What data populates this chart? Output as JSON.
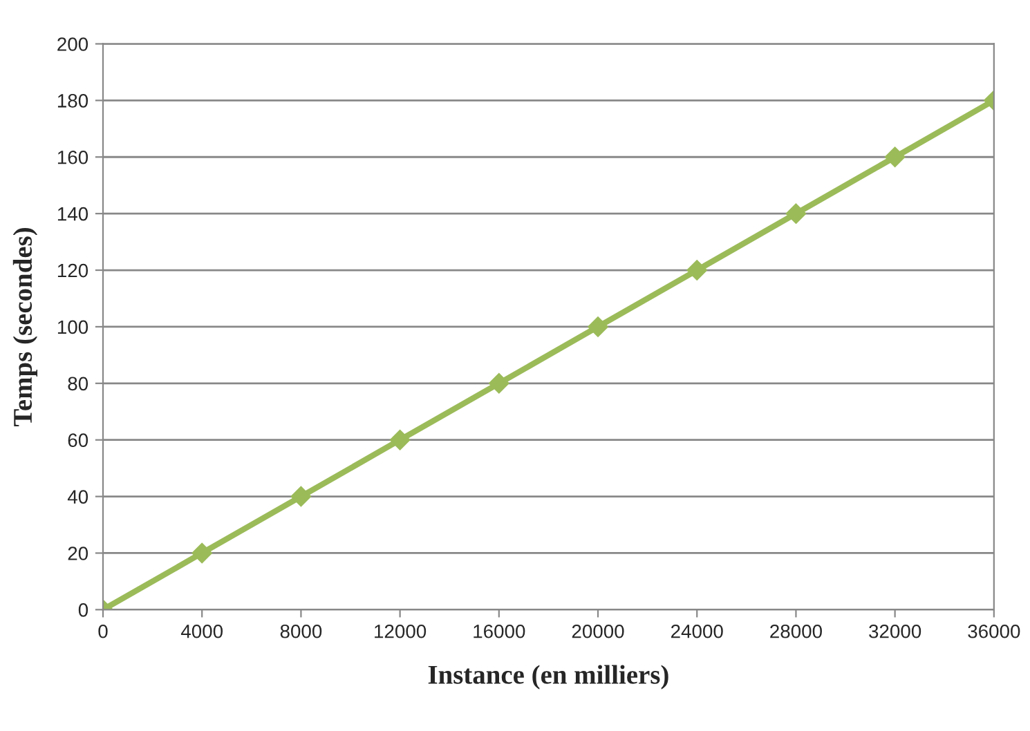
{
  "chart_data": {
    "type": "line",
    "xlabel": "Instance (en milliers)",
    "ylabel": "Temps (secondes)",
    "x": [
      0,
      4000,
      8000,
      12000,
      16000,
      20000,
      24000,
      28000,
      32000,
      36000
    ],
    "series": [
      {
        "color": "#9bbb59",
        "values": [
          0,
          20,
          40,
          60,
          80,
          100,
          120,
          140,
          160,
          180
        ]
      }
    ],
    "xlim": [
      0,
      36000
    ],
    "xticks": [
      0,
      4000,
      8000,
      12000,
      16000,
      20000,
      24000,
      28000,
      32000,
      36000
    ],
    "ylim": [
      0,
      200
    ],
    "yticks": [
      0,
      20,
      40,
      60,
      80,
      100,
      120,
      140,
      160,
      180,
      200
    ],
    "grid": "y",
    "marker": "diamond",
    "line_style": "solid"
  }
}
